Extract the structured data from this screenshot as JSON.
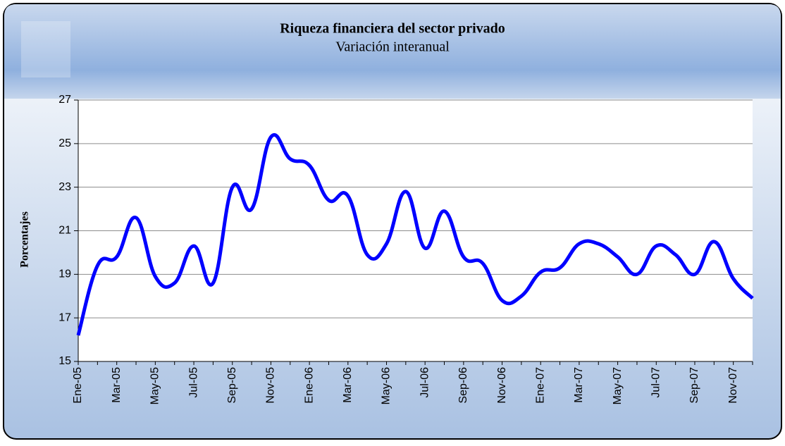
{
  "chart_data": {
    "type": "line",
    "title": "Riqueza financiera del sector privado",
    "subtitle": "Variación interanual",
    "y_label": "Porcentajes",
    "categories": [
      "Ene-05",
      null,
      "Mar-05",
      null,
      "May-05",
      null,
      "Jul-05",
      null,
      "Sep-05",
      null,
      "Nov-05",
      null,
      "Ene-06",
      null,
      "Mar-06",
      null,
      "May-06",
      null,
      "Jul-06",
      null,
      "Sep-06",
      null,
      "Nov-06",
      null,
      "Ene-07",
      null,
      "Mar-07",
      null,
      "May-07",
      null,
      "Jul-07",
      null,
      "Sep-07",
      null,
      "Nov-07",
      null
    ],
    "series": [
      {
        "color": "#0000ff",
        "values": [
          16.2,
          19.4,
          19.8,
          21.6,
          18.9,
          18.6,
          20.3,
          18.6,
          23.0,
          22.0,
          25.3,
          24.3,
          24.0,
          22.4,
          22.6,
          19.9,
          20.4,
          22.8,
          20.2,
          21.9,
          19.8,
          19.5,
          17.8,
          18.0,
          19.1,
          19.3,
          20.4,
          20.4,
          19.8,
          19.0,
          20.3,
          19.9,
          19.0,
          20.5,
          18.8,
          17.9
        ]
      }
    ],
    "ylim": [
      15,
      27
    ],
    "yticks": [
      15,
      17,
      19,
      21,
      23,
      25,
      27
    ],
    "grid": true
  }
}
